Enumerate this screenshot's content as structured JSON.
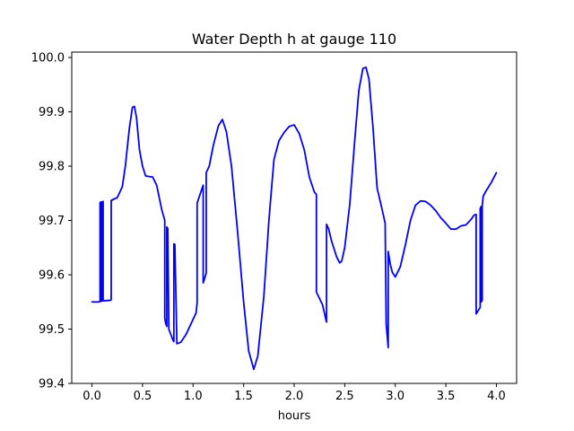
{
  "chart_data": {
    "type": "line",
    "title": "Water Depth h at gauge 110",
    "xlabel": "hours",
    "ylabel": "",
    "xlim": [
      -0.2,
      4.2
    ],
    "ylim": [
      99.4,
      100.01
    ],
    "xticks": [
      0.0,
      0.5,
      1.0,
      1.5,
      2.0,
      2.5,
      3.0,
      3.5,
      4.0
    ],
    "xtick_labels": [
      "0.0",
      "0.5",
      "1.0",
      "1.5",
      "2.0",
      "2.5",
      "3.0",
      "3.5",
      "4.0"
    ],
    "yticks": [
      99.4,
      99.5,
      99.6,
      99.7,
      99.8,
      99.9,
      100.0
    ],
    "ytick_labels": [
      "99.4",
      "99.5",
      "99.6",
      "99.7",
      "99.8",
      "99.9",
      "100.0"
    ],
    "grid": false,
    "legend": "none",
    "series": [
      {
        "color": "#0000ff",
        "x": [
          0.0,
          0.07,
          0.08,
          0.08,
          0.09,
          0.09,
          0.1,
          0.1,
          0.11,
          0.11,
          0.18,
          0.19,
          0.19,
          0.2,
          0.2,
          0.25,
          0.3,
          0.33,
          0.37,
          0.4,
          0.42,
          0.44,
          0.47,
          0.5,
          0.53,
          0.56,
          0.6,
          0.64,
          0.67,
          0.69,
          0.72,
          0.72,
          0.73,
          0.74,
          0.74,
          0.75,
          0.76,
          0.8,
          0.81,
          0.81,
          0.82,
          0.84,
          0.88,
          0.93,
          0.98,
          1.03,
          1.04,
          1.04,
          1.1,
          1.1,
          1.13,
          1.13,
          1.16,
          1.2,
          1.25,
          1.29,
          1.33,
          1.38,
          1.44,
          1.5,
          1.55,
          1.6,
          1.64,
          1.7,
          1.75,
          1.8,
          1.85,
          1.9,
          1.95,
          2.0,
          2.05,
          2.1,
          2.15,
          2.2,
          2.22,
          2.22,
          2.28,
          2.32,
          2.32,
          2.34,
          2.37,
          2.42,
          2.45,
          2.47,
          2.5,
          2.55,
          2.6,
          2.64,
          2.68,
          2.71,
          2.74,
          2.78,
          2.82,
          2.87,
          2.9,
          2.91,
          2.91,
          2.93,
          2.93,
          2.95,
          2.97,
          3.0,
          3.05,
          3.1,
          3.15,
          3.2,
          3.25,
          3.3,
          3.35,
          3.4,
          3.45,
          3.5,
          3.55,
          3.6,
          3.65,
          3.7,
          3.75,
          3.78,
          3.8,
          3.8,
          3.84,
          3.84,
          3.85,
          3.85,
          3.86,
          3.86,
          3.87,
          3.9,
          3.95,
          4.0
        ],
        "y": [
          99.55,
          99.55,
          99.551,
          99.733,
          99.734,
          99.551,
          99.552,
          99.734,
          99.735,
          99.552,
          99.553,
          99.554,
          99.737,
          99.737,
          99.738,
          99.742,
          99.762,
          99.8,
          99.87,
          99.908,
          99.91,
          99.89,
          99.83,
          99.8,
          99.782,
          99.781,
          99.78,
          99.765,
          99.738,
          99.72,
          99.7,
          99.52,
          99.51,
          99.505,
          99.688,
          99.685,
          99.5,
          99.48,
          99.477,
          99.657,
          99.656,
          99.473,
          99.476,
          99.49,
          99.51,
          99.53,
          99.548,
          99.732,
          99.765,
          99.585,
          99.603,
          99.788,
          99.8,
          99.838,
          99.874,
          99.886,
          99.863,
          99.8,
          99.68,
          99.55,
          99.46,
          99.426,
          99.45,
          99.56,
          99.7,
          99.812,
          99.847,
          99.862,
          99.873,
          99.876,
          99.86,
          99.83,
          99.78,
          99.752,
          99.748,
          99.568,
          99.545,
          99.513,
          99.693,
          99.685,
          99.662,
          99.633,
          99.622,
          99.625,
          99.65,
          99.73,
          99.85,
          99.94,
          99.98,
          99.982,
          99.96,
          99.87,
          99.76,
          99.72,
          99.695,
          99.511,
          99.51,
          99.466,
          99.643,
          99.62,
          99.605,
          99.596,
          99.615,
          99.655,
          99.7,
          99.728,
          99.736,
          99.735,
          99.728,
          99.718,
          99.705,
          99.695,
          99.684,
          99.684,
          99.69,
          99.692,
          99.702,
          99.71,
          99.711,
          99.528,
          99.54,
          99.722,
          99.726,
          99.55,
          99.553,
          99.727,
          99.745,
          99.755,
          99.77,
          99.788
        ]
      }
    ]
  }
}
